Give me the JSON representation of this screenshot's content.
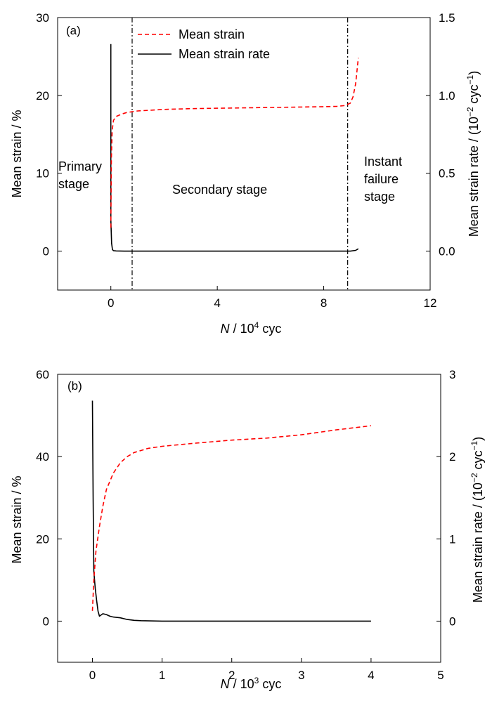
{
  "chart_data": [
    {
      "type": "line",
      "panel_label": "(a)",
      "xlabel": {
        "var": "N",
        "rest": " / 10",
        "exp": "4",
        "unit": " cyc"
      },
      "ylabel_left": "Mean strain / %",
      "ylabel_right": {
        "pre": "Mean strain rate / (10",
        "exp1": "−2",
        "mid": " cyc",
        "exp2": "−1",
        "post": ")"
      },
      "xlim": [
        -2,
        12
      ],
      "ylim_left": [
        -5,
        30
      ],
      "ylim_right": [
        -0.25,
        1.5
      ],
      "x_ticks": [
        "0",
        "4",
        "8",
        "12"
      ],
      "y_left_ticks": [
        "0",
        "10",
        "20",
        "30"
      ],
      "y_right_ticks": [
        "0.0",
        "0.5",
        "1.0",
        "1.5"
      ],
      "legend": {
        "position": "top-left",
        "entries": [
          "Mean strain",
          "Mean strain rate"
        ]
      },
      "series": [
        {
          "name": "Mean strain",
          "axis": "left",
          "color": "#ff0000",
          "style": "dashed",
          "x": [
            0.0,
            0.02,
            0.05,
            0.1,
            0.2,
            0.4,
            0.6,
            0.8,
            1.0,
            1.5,
            2.0,
            3.0,
            4.0,
            5.0,
            6.0,
            7.0,
            8.0,
            8.5,
            8.8,
            9.0,
            9.1,
            9.2,
            9.3
          ],
          "y": [
            3.0,
            12.0,
            15.5,
            16.8,
            17.3,
            17.6,
            17.8,
            17.9,
            18.0,
            18.1,
            18.2,
            18.3,
            18.35,
            18.4,
            18.45,
            18.5,
            18.55,
            18.6,
            18.7,
            19.0,
            19.8,
            21.5,
            24.8
          ]
        },
        {
          "name": "Mean strain rate",
          "axis": "right",
          "color": "#000000",
          "style": "solid",
          "x": [
            0.0,
            0.0,
            0.03,
            0.06,
            0.1,
            0.2,
            0.5,
            1.0,
            3.0,
            6.0,
            8.0,
            9.0,
            9.2,
            9.3
          ],
          "y": [
            1.33,
            0.2,
            0.05,
            0.01,
            0.003,
            0.001,
            0.0,
            0.0,
            0.0,
            0.0,
            0.0,
            0.0,
            0.005,
            0.015
          ]
        }
      ],
      "vertical_lines": [
        0.8,
        8.9
      ],
      "annotations": [
        {
          "lines": [
            "Primary",
            "stage"
          ]
        },
        {
          "lines": [
            "Secondary stage"
          ]
        },
        {
          "lines": [
            "Instant",
            "failure",
            "stage"
          ]
        }
      ]
    },
    {
      "type": "line",
      "panel_label": "(b)",
      "xlabel": {
        "var": "N",
        "rest": " / 10",
        "exp": "3",
        "unit": " cyc"
      },
      "ylabel_left": "Mean strain / %",
      "ylabel_right": {
        "pre": "Mean strain rate / (10",
        "exp1": "−2",
        "mid": " cyc",
        "exp2": "−1",
        "post": ")"
      },
      "xlim": [
        -0.5,
        5
      ],
      "ylim_left": [
        -10,
        60
      ],
      "ylim_right": [
        -0.5,
        3
      ],
      "x_ticks": [
        "0",
        "1",
        "2",
        "3",
        "4",
        "5"
      ],
      "y_left_ticks": [
        "0",
        "20",
        "40",
        "60"
      ],
      "y_right_ticks": [
        "0",
        "1",
        "2",
        "3"
      ],
      "series": [
        {
          "name": "Mean strain",
          "axis": "left",
          "color": "#ff0000",
          "style": "dashed",
          "x": [
            0.0,
            0.02,
            0.05,
            0.1,
            0.15,
            0.2,
            0.3,
            0.4,
            0.5,
            0.6,
            0.7,
            0.8,
            1.0,
            1.5,
            2.0,
            2.5,
            3.0,
            3.5,
            4.0
          ],
          "y": [
            2.5,
            10.0,
            17.0,
            23.0,
            28.0,
            32.0,
            36.0,
            38.5,
            40.0,
            41.0,
            41.5,
            42.0,
            42.5,
            43.3,
            44.0,
            44.5,
            45.3,
            46.5,
            47.5
          ]
        },
        {
          "name": "Mean strain rate",
          "axis": "right",
          "color": "#000000",
          "style": "solid",
          "x": [
            0.0,
            0.01,
            0.02,
            0.04,
            0.06,
            0.08,
            0.1,
            0.15,
            0.2,
            0.25,
            0.3,
            0.4,
            0.5,
            0.6,
            0.7,
            1.0,
            2.0,
            3.0,
            4.0
          ],
          "y": [
            2.68,
            1.5,
            0.6,
            0.4,
            0.25,
            0.12,
            0.06,
            0.09,
            0.08,
            0.06,
            0.05,
            0.04,
            0.02,
            0.01,
            0.005,
            0.0,
            0.0,
            0.0,
            0.0
          ]
        }
      ]
    }
  ]
}
